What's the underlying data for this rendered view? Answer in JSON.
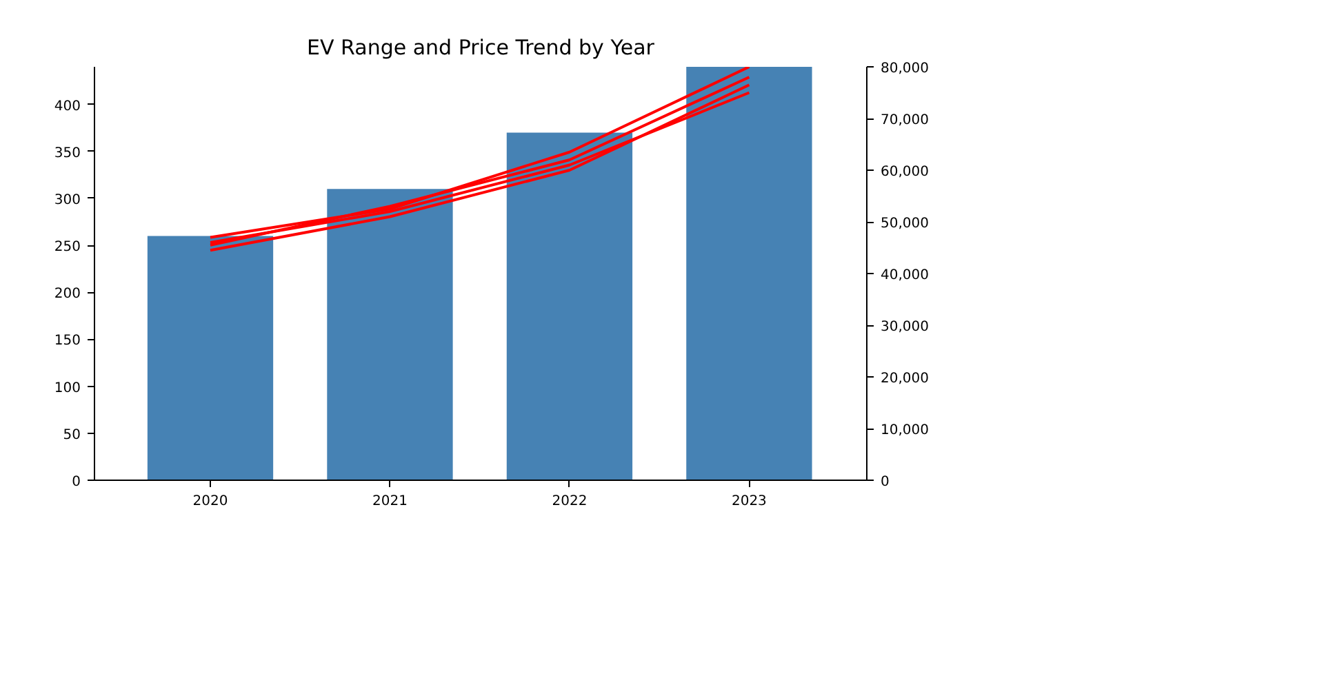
{
  "chart_data": {
    "type": "bar",
    "title": "EV Range and Price Trend by Year",
    "categories": [
      "2020",
      "2021",
      "2022",
      "2023"
    ],
    "series": [
      {
        "color": "#4682b4",
        "values": [
          260,
          310,
          370,
          440
        ]
      },
      {
        "type": "line",
        "axis": "y2",
        "color": "#ff0000",
        "values": [
          46000,
          52000,
          61000,
          75000
        ]
      },
      {
        "type": "line",
        "axis": "y2",
        "color": "#ff0000",
        "values": [
          44500,
          51000,
          60000,
          76500
        ]
      },
      {
        "type": "line",
        "axis": "y2",
        "color": "#ff0000",
        "values": [
          45500,
          53000,
          62000,
          78000
        ]
      },
      {
        "type": "line",
        "axis": "y2",
        "color": "#ff0000",
        "values": [
          47000,
          52500,
          63500,
          80000
        ]
      }
    ],
    "ylim": [
      0,
      440
    ],
    "yticks": [
      0,
      50,
      100,
      150,
      200,
      250,
      300,
      350,
      400
    ],
    "y2lim": [
      0,
      80000
    ],
    "y2ticks": [
      0,
      {
        "value": 10000,
        "label": "10,000"
      },
      {
        "value": 20000,
        "label": "20,000"
      },
      {
        "value": 30000,
        "label": "30,000"
      },
      {
        "value": 40000,
        "label": "40,000"
      },
      {
        "value": 50000,
        "label": "50,000"
      },
      {
        "value": 60000,
        "label": "60,000"
      },
      {
        "value": 70000,
        "label": "70,000"
      },
      {
        "value": 80000,
        "label": "80,000"
      }
    ],
    "grid": false
  }
}
